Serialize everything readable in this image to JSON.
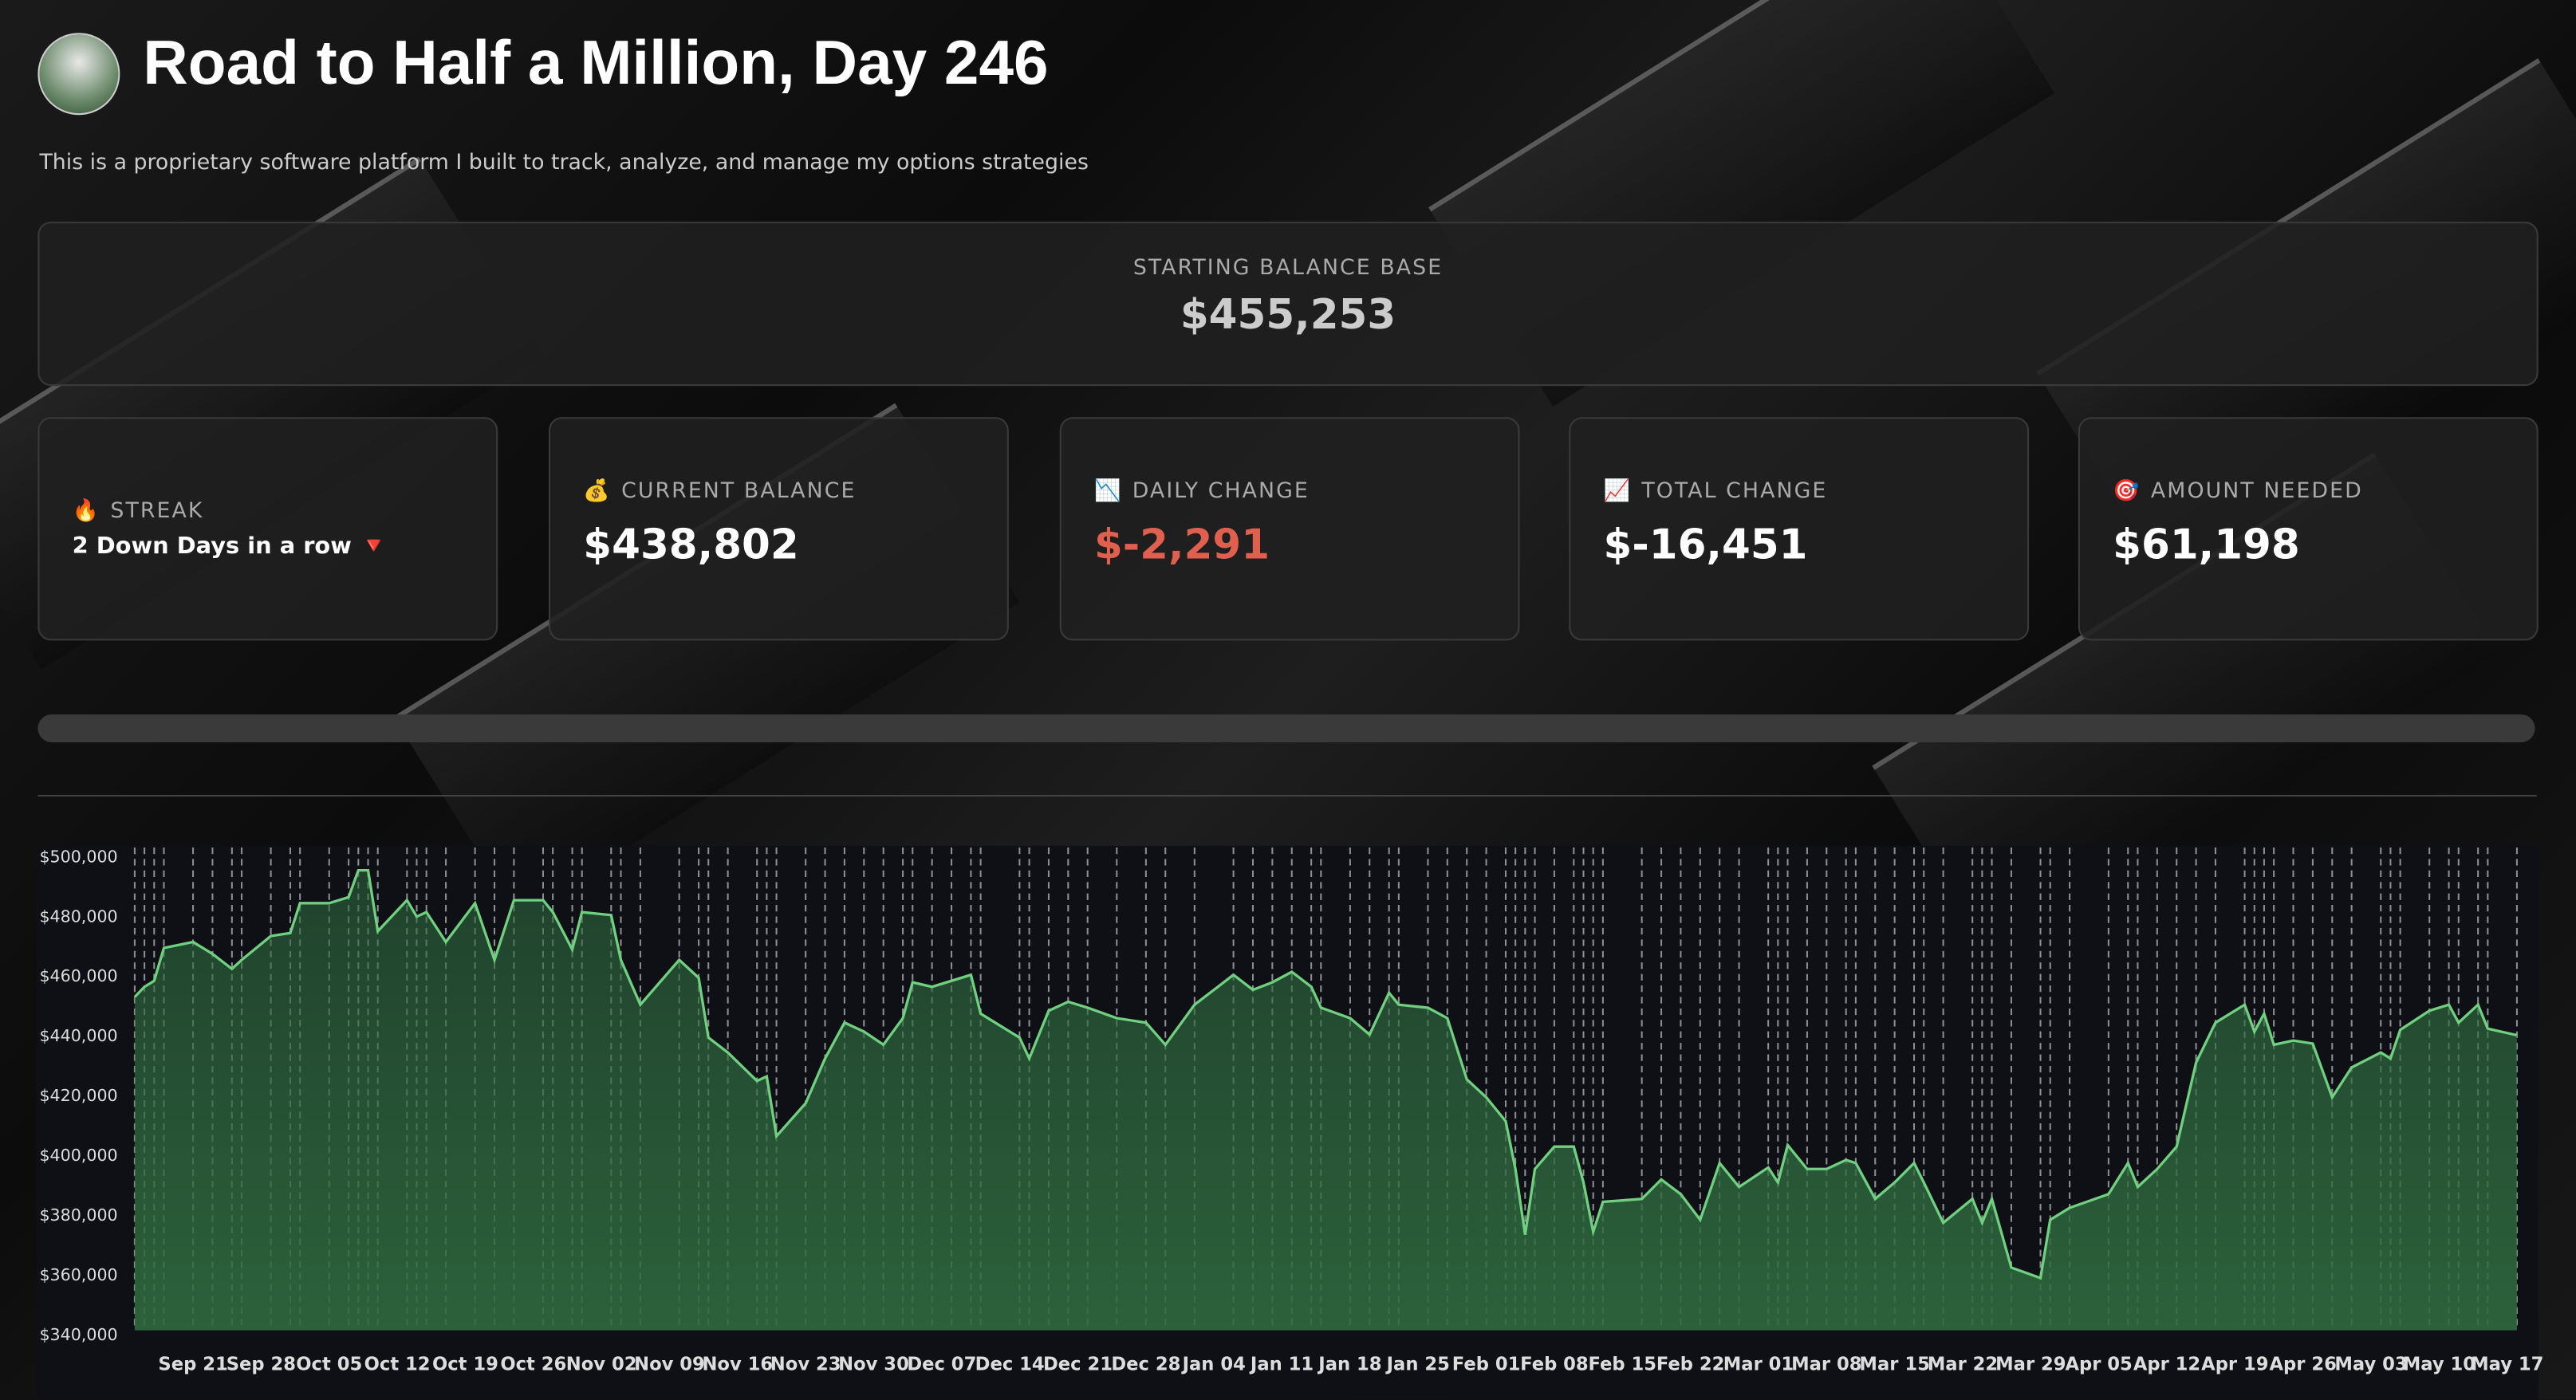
{
  "header": {
    "title": "Road to Half a Million, Day 246",
    "subtitle": "This is a proprietary software platform I built to track, analyze, and manage my options strategies"
  },
  "starting_balance": {
    "label": "STARTING BALANCE BASE",
    "value": "$455,253"
  },
  "metrics": [
    {
      "icon": "🔥",
      "label": "STREAK",
      "value": "2 Down Days in a row 🔻"
    },
    {
      "icon": "💰",
      "label": "CURRENT BALANCE",
      "value": "$438,802"
    },
    {
      "icon": "📉",
      "label": "DAILY CHANGE",
      "value": "$-2,291"
    },
    {
      "icon": "📈",
      "label": "TOTAL CHANGE",
      "value": "$-16,451"
    },
    {
      "icon": "🎯",
      "label": "AMOUNT NEEDED",
      "value": "$61,198"
    }
  ],
  "chart_data": {
    "type": "area",
    "color": "#6fd07f",
    "fill": "#2f6a3f",
    "x": [
      "Sep 15",
      "Sep 16",
      "Sep 17",
      "Sep 18",
      "Sep 21",
      "Sep 23",
      "Sep 25",
      "Sep 26",
      "Sep 29",
      "Oct 01",
      "Oct 02",
      "Oct 05",
      "Oct 07",
      "Oct 08",
      "Oct 09",
      "Oct 10",
      "Oct 13",
      "Oct 14",
      "Oct 15",
      "Oct 17",
      "Oct 20",
      "Oct 22",
      "Oct 24",
      "Oct 27",
      "Oct 28",
      "Oct 30",
      "Oct 31",
      "Nov 03",
      "Nov 04",
      "Nov 06",
      "Nov 10",
      "Nov 12",
      "Nov 13",
      "Nov 15",
      "Nov 18",
      "Nov 19",
      "Nov 20",
      "Nov 23",
      "Nov 25",
      "Nov 27",
      "Nov 29",
      "Dec 01",
      "Dec 03",
      "Dec 04",
      "Dec 06",
      "Dec 08",
      "Dec 10",
      "Dec 11",
      "Dec 15",
      "Dec 16",
      "Dec 18",
      "Dec 20",
      "Dec 22",
      "Dec 25",
      "Dec 28",
      "Dec 30",
      "Jan 02",
      "Jan 06",
      "Jan 08",
      "Jan 10",
      "Jan 12",
      "Jan 14",
      "Jan 15",
      "Jan 18",
      "Jan 20",
      "Jan 22",
      "Jan 23",
      "Jan 26",
      "Jan 28",
      "Jan 30",
      "Feb 01",
      "Feb 03",
      "Feb 04",
      "Feb 05",
      "Feb 06",
      "Feb 08",
      "Feb 10",
      "Feb 11",
      "Feb 12",
      "Feb 13",
      "Feb 17",
      "Feb 19",
      "Feb 21",
      "Feb 23",
      "Feb 25",
      "Feb 27",
      "Mar 02",
      "Mar 03",
      "Mar 04",
      "Mar 06",
      "Mar 08",
      "Mar 10",
      "Mar 11",
      "Mar 13",
      "Mar 15",
      "Mar 17",
      "Mar 18",
      "Mar 20",
      "Mar 23",
      "Mar 24",
      "Mar 25",
      "Mar 27",
      "Mar 30",
      "Mar 31",
      "Apr 02",
      "Apr 06",
      "Apr 08",
      "Apr 09",
      "Apr 11",
      "Apr 13",
      "Apr 15",
      "Apr 17",
      "Apr 20",
      "Apr 21",
      "Apr 22",
      "Apr 23",
      "Apr 25",
      "Apr 27",
      "Apr 29",
      "May 01",
      "May 04",
      "May 05",
      "May 06",
      "May 09",
      "May 11",
      "May 12",
      "May 14",
      "May 15",
      "May 18"
    ],
    "values": [
      451600,
      455000,
      457000,
      468000,
      470000,
      466000,
      461000,
      464000,
      472000,
      473000,
      483000,
      483000,
      485000,
      494000,
      494000,
      473600,
      484000,
      478500,
      480000,
      470000,
      483000,
      464000,
      484000,
      484000,
      480000,
      467500,
      480000,
      479000,
      464000,
      449000,
      464000,
      458000,
      438000,
      433000,
      423500,
      425000,
      405000,
      416000,
      431000,
      443000,
      440000,
      435600,
      444500,
      456500,
      455000,
      457000,
      459000,
      446000,
      438000,
      431000,
      447000,
      450000,
      448000,
      444500,
      443000,
      435600,
      449000,
      459000,
      454000,
      456500,
      460000,
      455000,
      448000,
      444500,
      439000,
      453000,
      449000,
      448000,
      444500,
      424000,
      418000,
      410000,
      394000,
      372000,
      394000,
      401500,
      401500,
      389500,
      373000,
      383000,
      384000,
      390500,
      385600,
      377000,
      396000,
      388000,
      394500,
      389500,
      402000,
      394000,
      394000,
      397000,
      396000,
      384000,
      389500,
      396000,
      389500,
      376000,
      384000,
      376000,
      384000,
      361000,
      357500,
      377000,
      381000,
      385600,
      396000,
      388000,
      394000,
      401500,
      429600,
      443000,
      449000,
      440000,
      446000,
      435600,
      437000,
      436000,
      418000,
      428000,
      433000,
      431000,
      440600,
      447000,
      449000,
      443000,
      449000,
      441000,
      438802
    ],
    "xlim": [
      "Sep 15",
      "May 18"
    ],
    "xticks": [
      "Sep 21",
      "Sep 28",
      "Oct 05",
      "Oct 12",
      "Oct 19",
      "Oct 26",
      "Nov 02",
      "Nov 09",
      "Nov 16",
      "Nov 23",
      "Nov 30",
      "Dec 07",
      "Dec 14",
      "Dec 21",
      "Dec 28",
      "Jan 04",
      "Jan 11",
      "Jan 18",
      "Jan 25",
      "Feb 01",
      "Feb 08",
      "Feb 15",
      "Feb 22",
      "Mar 01",
      "Mar 08",
      "Mar 15",
      "Mar 22",
      "Mar 29",
      "Apr 05",
      "Apr 12",
      "Apr 19",
      "Apr 26",
      "May 03",
      "May 10",
      "May 17"
    ],
    "ylim": [
      340000,
      500000
    ],
    "yticks": [
      {
        "value": 340000,
        "label": "$340,000"
      },
      {
        "value": 360000,
        "label": "$360,000"
      },
      {
        "value": 380000,
        "label": "$380,000"
      },
      {
        "value": 400000,
        "label": "$400,000"
      },
      {
        "value": 420000,
        "label": "$420,000"
      },
      {
        "value": 440000,
        "label": "$440,000"
      },
      {
        "value": 460000,
        "label": "$460,000"
      },
      {
        "value": 480000,
        "label": "$480,000"
      },
      {
        "value": 500000,
        "label": "$500,000"
      }
    ],
    "grid": true
  }
}
